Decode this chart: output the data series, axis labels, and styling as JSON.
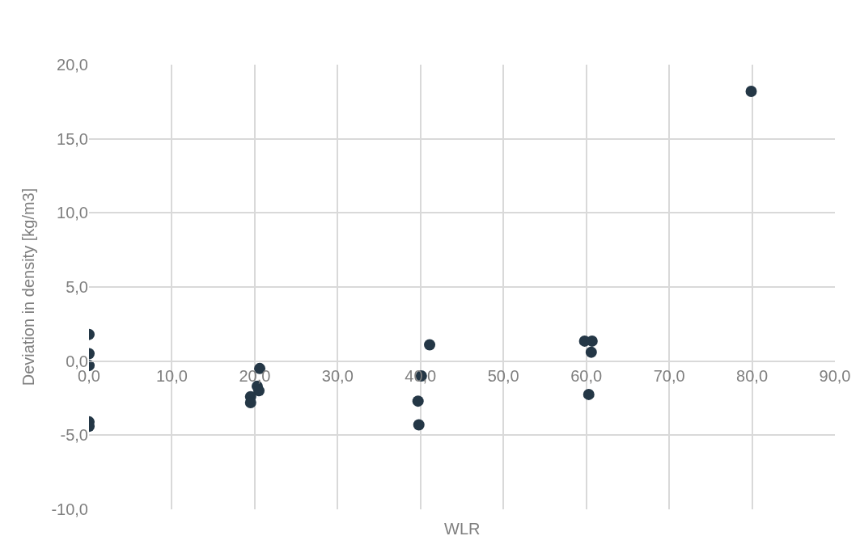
{
  "chart_data": {
    "type": "scatter",
    "xlabel": "WLR",
    "ylabel": "Deviation in density [kg/m3]",
    "x": [
      0,
      0,
      0,
      0,
      0,
      20.6,
      20.3,
      20.5,
      19.5,
      19.5,
      41.1,
      40.1,
      39.7,
      39.8,
      59.8,
      60.7,
      60.6,
      60.3,
      79.9
    ],
    "series": [
      {
        "color": "#243746",
        "values": [
          1.8,
          0.5,
          -0.3,
          -4.1,
          -4.4,
          -0.5,
          -1.7,
          -2.0,
          -2.4,
          -2.8,
          1.1,
          -1.0,
          -2.7,
          -4.3,
          1.35,
          1.35,
          0.6,
          -2.25,
          18.2
        ]
      }
    ],
    "marker": "circle",
    "grid": true,
    "xlim": [
      0,
      90
    ],
    "ylim": [
      -10,
      20
    ],
    "xticks": [
      {
        "value": 0,
        "label": "0,0"
      },
      {
        "value": 10,
        "label": "10,0"
      },
      {
        "value": 20,
        "label": "20,0"
      },
      {
        "value": 30,
        "label": "30,0"
      },
      {
        "value": 40,
        "label": "40,0"
      },
      {
        "value": 50,
        "label": "50,0"
      },
      {
        "value": 60,
        "label": "60,0"
      },
      {
        "value": 70,
        "label": "70,0"
      },
      {
        "value": 80,
        "label": "80,0"
      },
      {
        "value": 90,
        "label": "90,0"
      }
    ],
    "yticks": [
      {
        "value": -10,
        "label": "-10,0"
      },
      {
        "value": -5,
        "label": "-5,0"
      },
      {
        "value": 0,
        "label": "0,0"
      },
      {
        "value": 5,
        "label": "5,0"
      },
      {
        "value": 10,
        "label": "10,0"
      },
      {
        "value": 15,
        "label": "15,0"
      },
      {
        "value": 20,
        "label": "20,0"
      }
    ]
  }
}
